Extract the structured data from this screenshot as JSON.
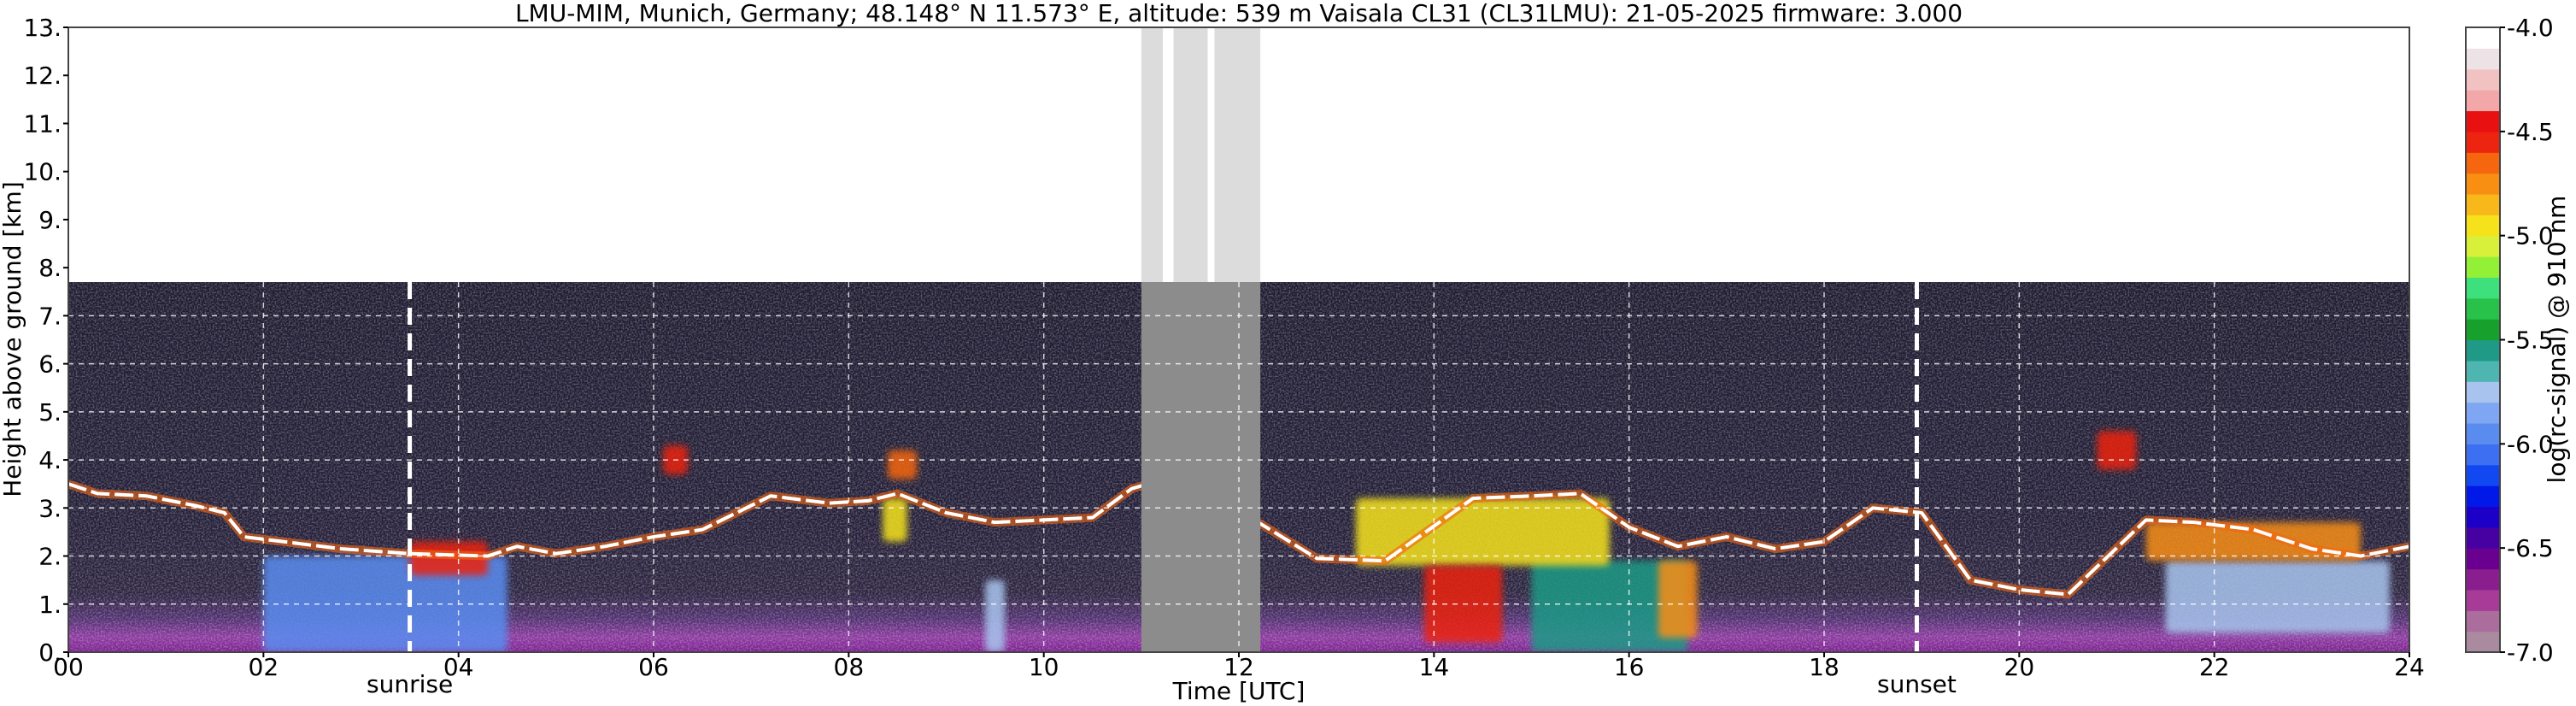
{
  "chart_data": {
    "type": "heatmap",
    "title": "LMU-MIM, Munich, Germany; 48.148° N 11.573° E, altitude: 539 m    Vaisala CL31 (CL31LMU): 21-05-2025    firmware: 3.000",
    "xlabel": "Time [UTC]",
    "ylabel": "Height above ground [km]",
    "xlim": [
      0,
      24
    ],
    "ylim": [
      0,
      13
    ],
    "x_tick_labels": [
      "00",
      "02",
      "04",
      "06",
      "08",
      "10",
      "12",
      "14",
      "16",
      "18",
      "20",
      "22",
      "24"
    ],
    "y_tick_labels": [
      "0.",
      "1.",
      "2.",
      "3.",
      "4.",
      "5.",
      "6.",
      "7.",
      "8.",
      "9.",
      "10.",
      "11.",
      "12.",
      "13."
    ],
    "grid": true,
    "measurement_top_km": 7.7,
    "annotations": [
      {
        "text": "sunrise",
        "x": 3.5
      },
      {
        "text": "sunset",
        "x": 18.95
      }
    ],
    "missing_data_intervals": [
      [
        11.0,
        11.22
      ],
      [
        11.33,
        11.68
      ],
      [
        11.75,
        12.22
      ]
    ],
    "no_signal_intervals": [
      [
        11.0,
        12.22
      ]
    ],
    "cloud_base_layer": [
      [
        0.0,
        3.5
      ],
      [
        0.3,
        3.3
      ],
      [
        0.8,
        3.25
      ],
      [
        1.3,
        3.05
      ],
      [
        1.6,
        2.9
      ],
      [
        1.8,
        2.4
      ],
      [
        2.2,
        2.3
      ],
      [
        2.8,
        2.15
      ],
      [
        3.5,
        2.05
      ],
      [
        4.3,
        2.0
      ],
      [
        4.6,
        2.2
      ],
      [
        5.0,
        2.05
      ],
      [
        5.5,
        2.2
      ],
      [
        6.0,
        2.4
      ],
      [
        6.5,
        2.55
      ],
      [
        7.2,
        3.25
      ],
      [
        7.8,
        3.1
      ],
      [
        8.2,
        3.15
      ],
      [
        8.5,
        3.3
      ],
      [
        9.0,
        2.9
      ],
      [
        9.5,
        2.7
      ],
      [
        10.0,
        2.75
      ],
      [
        10.5,
        2.8
      ],
      [
        10.9,
        3.4
      ],
      [
        11.4,
        3.7
      ],
      [
        12.8,
        1.95
      ],
      [
        13.5,
        1.9
      ],
      [
        14.4,
        3.2
      ],
      [
        15.0,
        3.25
      ],
      [
        15.5,
        3.3
      ],
      [
        16.0,
        2.6
      ],
      [
        16.5,
        2.2
      ],
      [
        17.0,
        2.4
      ],
      [
        17.5,
        2.15
      ],
      [
        18.0,
        2.3
      ],
      [
        18.5,
        3.0
      ],
      [
        19.0,
        2.9
      ],
      [
        19.5,
        1.5
      ],
      [
        20.0,
        1.3
      ],
      [
        20.5,
        1.2
      ],
      [
        21.3,
        2.75
      ],
      [
        21.8,
        2.7
      ],
      [
        22.4,
        2.55
      ],
      [
        23.0,
        2.15
      ],
      [
        23.5,
        2.0
      ],
      [
        24.0,
        2.2
      ]
    ],
    "strong_signal_features": [
      {
        "x": [
          3.5,
          4.3
        ],
        "y": [
          1.6,
          2.3
        ],
        "level": -4.6
      },
      {
        "x": [
          6.1,
          6.35
        ],
        "y": [
          3.7,
          4.3
        ],
        "level": -4.6
      },
      {
        "x": [
          8.4,
          8.7
        ],
        "y": [
          3.6,
          4.2
        ],
        "level": -4.7
      },
      {
        "x": [
          8.35,
          8.6
        ],
        "y": [
          2.3,
          3.2
        ],
        "level": -4.9
      },
      {
        "x": [
          13.9,
          14.7
        ],
        "y": [
          0.2,
          1.8
        ],
        "level": -4.6
      },
      {
        "x": [
          13.2,
          15.8
        ],
        "y": [
          1.8,
          3.2
        ],
        "level": -4.9
      },
      {
        "x": [
          16.3,
          16.7
        ],
        "y": [
          0.3,
          1.9
        ],
        "level": -4.8
      },
      {
        "x": [
          20.8,
          21.2
        ],
        "y": [
          3.8,
          4.6
        ],
        "level": -4.6
      },
      {
        "x": [
          21.3,
          23.5
        ],
        "y": [
          1.9,
          2.7
        ],
        "level": -4.8
      },
      {
        "x": [
          2.0,
          4.5
        ],
        "y": [
          0.0,
          2.0
        ],
        "level": -5.9
      },
      {
        "x": [
          9.4,
          9.6
        ],
        "y": [
          0.0,
          1.5
        ],
        "level": -5.8
      },
      {
        "x": [
          15.0,
          16.6
        ],
        "y": [
          0.0,
          1.9
        ],
        "level": -5.6
      },
      {
        "x": [
          21.5,
          23.8
        ],
        "y": [
          0.4,
          1.9
        ],
        "level": -5.7
      }
    ],
    "colorbar": {
      "label": "log(rc-signal) @ 910 nm",
      "vmin": -7.0,
      "vmax": -4.0,
      "tick_labels": [
        "-4.0",
        "-4.5",
        "-5.0",
        "-5.5",
        "-6.0",
        "-6.5",
        "-7.0"
      ],
      "colors": [
        "#a98a9f",
        "#ab6d9c",
        "#a83b98",
        "#8a1e8e",
        "#6a0090",
        "#4700a2",
        "#1c00c8",
        "#0018e8",
        "#1248f2",
        "#3d6ff2",
        "#5a8cf0",
        "#7fa6f2",
        "#a8c4ee",
        "#4fb5b0",
        "#1f9a86",
        "#17a02c",
        "#28c24a",
        "#3ee07d",
        "#92f036",
        "#d8f03a",
        "#f5e21a",
        "#f8b81a",
        "#f88e12",
        "#f5660f",
        "#ec2410",
        "#e81010",
        "#f2a8a8",
        "#f2c2c2",
        "#ede3e6",
        "#ffffff"
      ]
    }
  }
}
